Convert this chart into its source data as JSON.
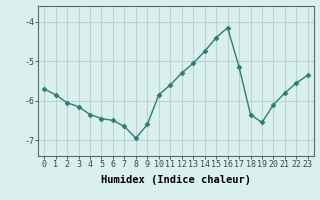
{
  "x": [
    0,
    1,
    2,
    3,
    4,
    5,
    6,
    7,
    8,
    9,
    10,
    11,
    12,
    13,
    14,
    15,
    16,
    17,
    18,
    19,
    20,
    21,
    22,
    23
  ],
  "y": [
    -5.7,
    -5.85,
    -6.05,
    -6.15,
    -6.35,
    -6.45,
    -6.5,
    -6.65,
    -6.95,
    -6.6,
    -5.85,
    -5.6,
    -5.3,
    -5.05,
    -4.75,
    -4.4,
    -4.15,
    -5.15,
    -6.35,
    -6.55,
    -6.1,
    -5.8,
    -5.55,
    -5.35
  ],
  "line_color": "#2e7d70",
  "marker": "D",
  "marker_size": 2.5,
  "bg_color": "#d9f0ef",
  "grid_color": "#b8d4d4",
  "xlabel": "Humidex (Indice chaleur)",
  "xlabel_fontsize": 7.5,
  "yticks": [
    -7,
    -6,
    -5,
    -4
  ],
  "ylim": [
    -7.4,
    -3.6
  ],
  "xlim": [
    -0.5,
    23.5
  ],
  "xticks": [
    0,
    1,
    2,
    3,
    4,
    5,
    6,
    7,
    8,
    9,
    10,
    11,
    12,
    13,
    14,
    15,
    16,
    17,
    18,
    19,
    20,
    21,
    22,
    23
  ],
  "tick_fontsize": 6,
  "line_width": 1.0
}
